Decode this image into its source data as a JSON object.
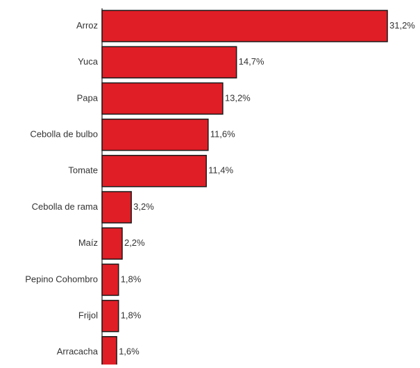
{
  "chart_data": {
    "type": "bar",
    "orientation": "horizontal",
    "categories": [
      "Arroz",
      "Yuca",
      "Papa",
      "Cebolla de bulbo",
      "Tomate",
      "Cebolla de rama",
      "Maíz",
      "Pepino Cohombro",
      "Frijol",
      "Arracacha"
    ],
    "values": [
      31.2,
      14.7,
      13.2,
      11.6,
      11.4,
      3.2,
      2.2,
      1.8,
      1.8,
      1.6
    ],
    "value_labels": [
      "31,2%",
      "14,7%",
      "13,2%",
      "11,6%",
      "11,4%",
      "3,2%",
      "2,2%",
      "1,8%",
      "1,8%",
      "1,6%"
    ],
    "title": "",
    "xlabel": "",
    "ylabel": "",
    "xlim": [
      0,
      31.2
    ],
    "grid": false,
    "legend": "none",
    "colors": {
      "bar_fill": "#e01e26",
      "bar_stroke": "#1a1a1a",
      "text": "#333333",
      "axis": "#1a1a1a"
    }
  }
}
